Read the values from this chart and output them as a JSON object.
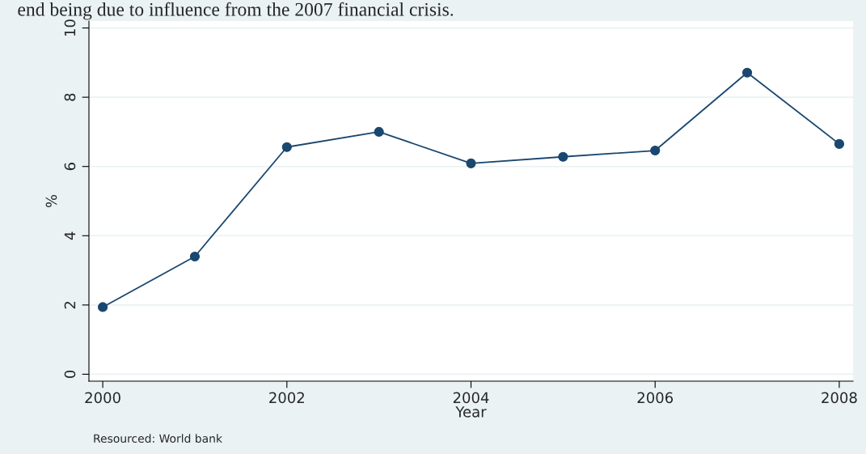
{
  "chart_data": {
    "type": "line",
    "x": [
      2000,
      2001,
      2002,
      2003,
      2004,
      2005,
      2006,
      2007,
      2008
    ],
    "series": [
      {
        "color": "#1a476f",
        "values": [
          1.94,
          3.4,
          6.56,
          7.0,
          6.09,
          6.28,
          6.46,
          8.71,
          6.65
        ]
      }
    ],
    "xlabel": "Year",
    "ylabel": "%",
    "xlim": [
      1999.85,
      2008.15
    ],
    "ylim": [
      -0.2,
      10.2
    ],
    "xticks": [
      2000,
      2002,
      2004,
      2006,
      2008
    ],
    "yticks": [
      0,
      2,
      4,
      6,
      8,
      10
    ],
    "grid": "y",
    "marker": "circle",
    "line_style": "solid",
    "annotations": [
      "end being due to influence from the 2007 financial crisis.",
      "Resourced: World bank"
    ]
  }
}
